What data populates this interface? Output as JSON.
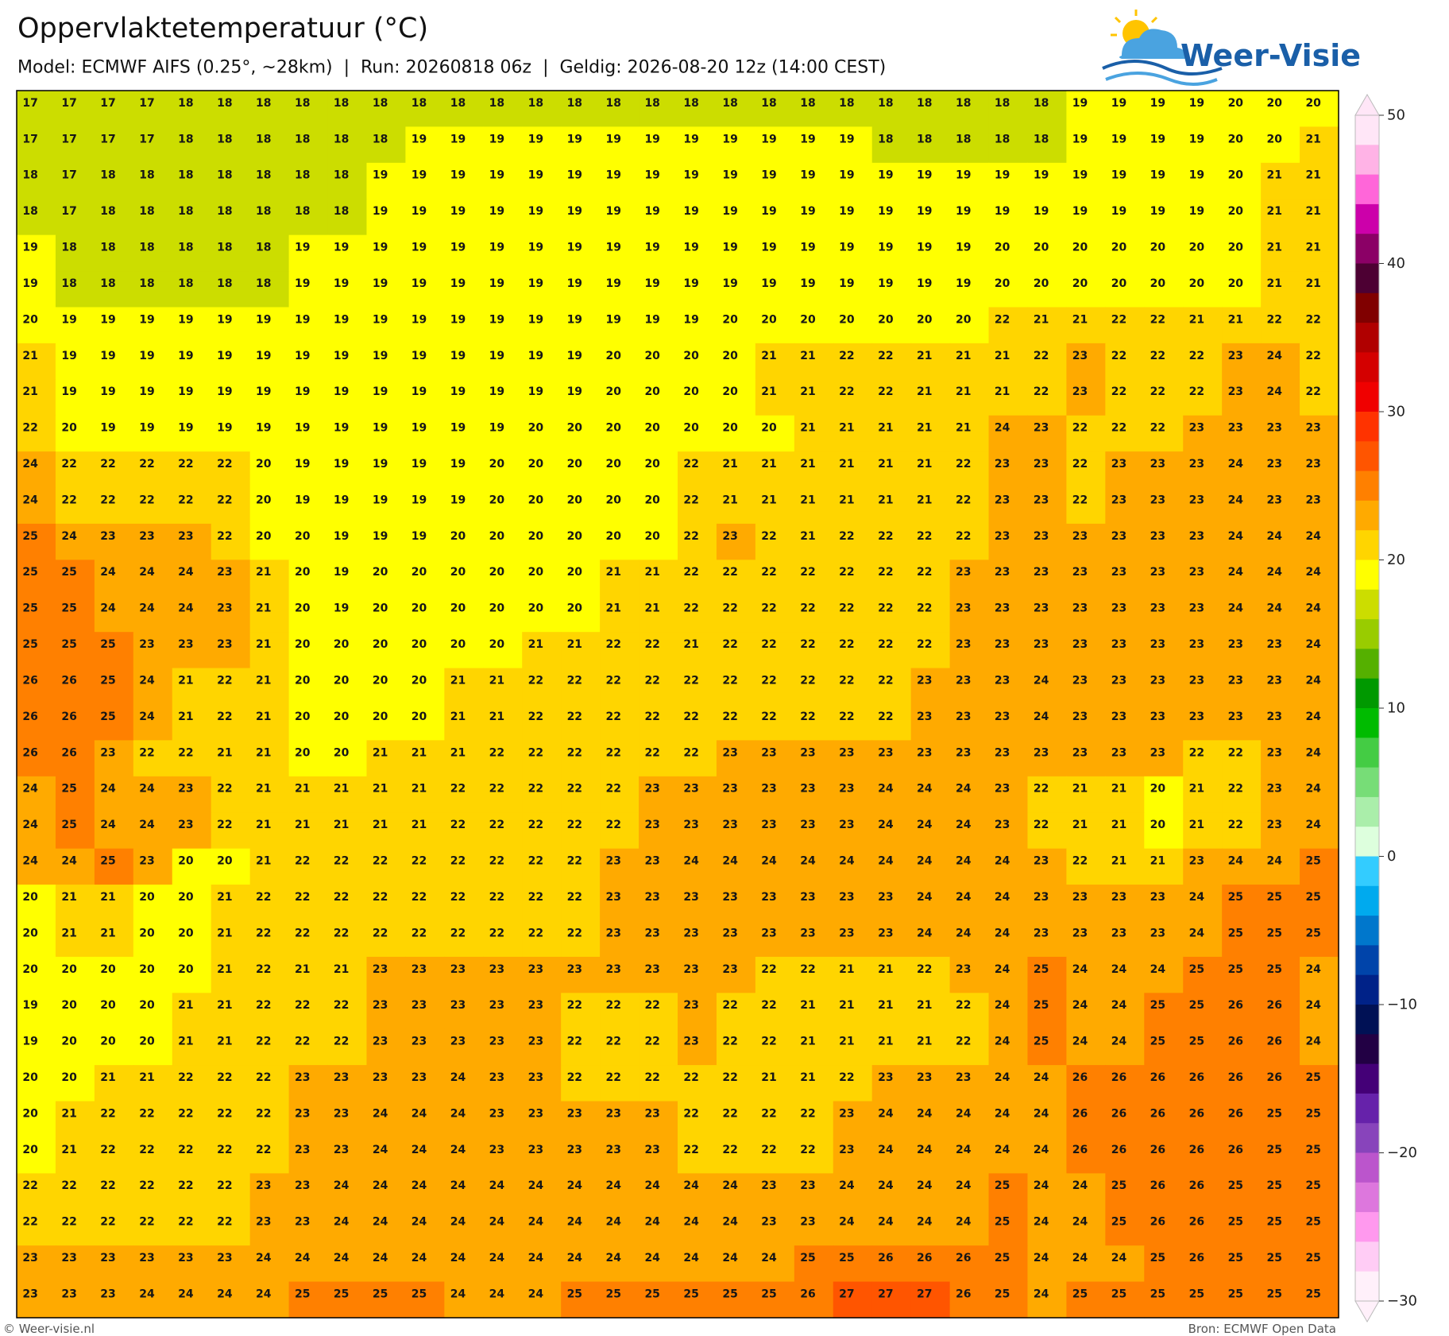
{
  "chart_data": {
    "type": "heatmap",
    "title": "Oppervlaktetemperatuur (°C)",
    "subtitle": "Model: ECMWF AIFS (0.25°, ~28km)  |  Run: 20260818 06z  |  Geldig: 2026-08-20 12z (14:00 CEST)",
    "values": [
      [
        17,
        17,
        17,
        17,
        18,
        18,
        18,
        18,
        18,
        18,
        18,
        18,
        18,
        18,
        18,
        18,
        18,
        18,
        18,
        18,
        18,
        18,
        18,
        18,
        18,
        18,
        18,
        19,
        19,
        19,
        19,
        20,
        20,
        20
      ],
      [
        17,
        17,
        17,
        17,
        18,
        18,
        18,
        18,
        18,
        18,
        19,
        19,
        19,
        19,
        19,
        19,
        19,
        19,
        19,
        19,
        19,
        19,
        18,
        18,
        18,
        18,
        18,
        19,
        19,
        19,
        19,
        20,
        20,
        21
      ],
      [
        18,
        17,
        18,
        18,
        18,
        18,
        18,
        18,
        18,
        19,
        19,
        19,
        19,
        19,
        19,
        19,
        19,
        19,
        19,
        19,
        19,
        19,
        19,
        19,
        19,
        19,
        19,
        19,
        19,
        19,
        19,
        20,
        21,
        21
      ],
      [
        18,
        17,
        18,
        18,
        18,
        18,
        18,
        18,
        18,
        19,
        19,
        19,
        19,
        19,
        19,
        19,
        19,
        19,
        19,
        19,
        19,
        19,
        19,
        19,
        19,
        19,
        19,
        19,
        19,
        19,
        19,
        20,
        21,
        21
      ],
      [
        19,
        18,
        18,
        18,
        18,
        18,
        18,
        19,
        19,
        19,
        19,
        19,
        19,
        19,
        19,
        19,
        19,
        19,
        19,
        19,
        19,
        19,
        19,
        19,
        19,
        20,
        20,
        20,
        20,
        20,
        20,
        20,
        21,
        21
      ],
      [
        19,
        18,
        18,
        18,
        18,
        18,
        18,
        19,
        19,
        19,
        19,
        19,
        19,
        19,
        19,
        19,
        19,
        19,
        19,
        19,
        19,
        19,
        19,
        19,
        19,
        20,
        20,
        20,
        20,
        20,
        20,
        20,
        21,
        21
      ],
      [
        20,
        19,
        19,
        19,
        19,
        19,
        19,
        19,
        19,
        19,
        19,
        19,
        19,
        19,
        19,
        19,
        19,
        19,
        20,
        20,
        20,
        20,
        20,
        20,
        20,
        22,
        21,
        21,
        22,
        22,
        21,
        21,
        22,
        22
      ],
      [
        21,
        19,
        19,
        19,
        19,
        19,
        19,
        19,
        19,
        19,
        19,
        19,
        19,
        19,
        19,
        20,
        20,
        20,
        20,
        21,
        21,
        22,
        22,
        21,
        21,
        21,
        22,
        23,
        22,
        22,
        22,
        23,
        24,
        22
      ],
      [
        21,
        19,
        19,
        19,
        19,
        19,
        19,
        19,
        19,
        19,
        19,
        19,
        19,
        19,
        19,
        20,
        20,
        20,
        20,
        21,
        21,
        22,
        22,
        21,
        21,
        21,
        22,
        23,
        22,
        22,
        22,
        23,
        24,
        22
      ],
      [
        22,
        20,
        19,
        19,
        19,
        19,
        19,
        19,
        19,
        19,
        19,
        19,
        19,
        20,
        20,
        20,
        20,
        20,
        20,
        20,
        21,
        21,
        21,
        21,
        21,
        24,
        23,
        22,
        22,
        22,
        23,
        23,
        23,
        23
      ],
      [
        24,
        22,
        22,
        22,
        22,
        22,
        20,
        19,
        19,
        19,
        19,
        19,
        20,
        20,
        20,
        20,
        20,
        22,
        21,
        21,
        21,
        21,
        21,
        21,
        22,
        23,
        23,
        22,
        23,
        23,
        23,
        24,
        23,
        23
      ],
      [
        24,
        22,
        22,
        22,
        22,
        22,
        20,
        19,
        19,
        19,
        19,
        19,
        20,
        20,
        20,
        20,
        20,
        22,
        21,
        21,
        21,
        21,
        21,
        21,
        22,
        23,
        23,
        22,
        23,
        23,
        23,
        24,
        23,
        23
      ],
      [
        25,
        24,
        23,
        23,
        23,
        22,
        20,
        20,
        19,
        19,
        19,
        20,
        20,
        20,
        20,
        20,
        20,
        22,
        23,
        22,
        21,
        22,
        22,
        22,
        22,
        23,
        23,
        23,
        23,
        23,
        23,
        24,
        24,
        24
      ],
      [
        25,
        25,
        24,
        24,
        24,
        23,
        21,
        20,
        19,
        20,
        20,
        20,
        20,
        20,
        20,
        21,
        21,
        22,
        22,
        22,
        22,
        22,
        22,
        22,
        23,
        23,
        23,
        23,
        23,
        23,
        23,
        24,
        24,
        24
      ],
      [
        25,
        25,
        24,
        24,
        24,
        23,
        21,
        20,
        19,
        20,
        20,
        20,
        20,
        20,
        20,
        21,
        21,
        22,
        22,
        22,
        22,
        22,
        22,
        22,
        23,
        23,
        23,
        23,
        23,
        23,
        23,
        24,
        24,
        24
      ],
      [
        25,
        25,
        25,
        23,
        23,
        23,
        21,
        20,
        20,
        20,
        20,
        20,
        20,
        21,
        21,
        22,
        22,
        21,
        22,
        22,
        22,
        22,
        22,
        22,
        23,
        23,
        23,
        23,
        23,
        23,
        23,
        23,
        23,
        24
      ],
      [
        26,
        26,
        25,
        24,
        21,
        22,
        21,
        20,
        20,
        20,
        20,
        21,
        21,
        22,
        22,
        22,
        22,
        22,
        22,
        22,
        22,
        22,
        22,
        23,
        23,
        23,
        24,
        23,
        23,
        23,
        23,
        23,
        23,
        24
      ],
      [
        26,
        26,
        25,
        24,
        21,
        22,
        21,
        20,
        20,
        20,
        20,
        21,
        21,
        22,
        22,
        22,
        22,
        22,
        22,
        22,
        22,
        22,
        22,
        23,
        23,
        23,
        24,
        23,
        23,
        23,
        23,
        23,
        23,
        24
      ],
      [
        26,
        26,
        23,
        22,
        22,
        21,
        21,
        20,
        20,
        21,
        21,
        21,
        22,
        22,
        22,
        22,
        22,
        22,
        23,
        23,
        23,
        23,
        23,
        23,
        23,
        23,
        23,
        23,
        23,
        23,
        22,
        22,
        23,
        24
      ],
      [
        24,
        25,
        24,
        24,
        23,
        22,
        21,
        21,
        21,
        21,
        21,
        22,
        22,
        22,
        22,
        22,
        23,
        23,
        23,
        23,
        23,
        23,
        24,
        24,
        24,
        23,
        22,
        21,
        21,
        20,
        21,
        22,
        23,
        24
      ],
      [
        24,
        25,
        24,
        24,
        23,
        22,
        21,
        21,
        21,
        21,
        21,
        22,
        22,
        22,
        22,
        22,
        23,
        23,
        23,
        23,
        23,
        23,
        24,
        24,
        24,
        23,
        22,
        21,
        21,
        20,
        21,
        22,
        23,
        24
      ],
      [
        24,
        24,
        25,
        23,
        20,
        20,
        21,
        22,
        22,
        22,
        22,
        22,
        22,
        22,
        22,
        23,
        23,
        24,
        24,
        24,
        24,
        24,
        24,
        24,
        24,
        24,
        23,
        22,
        21,
        21,
        23,
        24,
        24,
        25
      ],
      [
        20,
        21,
        21,
        20,
        20,
        21,
        22,
        22,
        22,
        22,
        22,
        22,
        22,
        22,
        22,
        23,
        23,
        23,
        23,
        23,
        23,
        23,
        23,
        24,
        24,
        24,
        23,
        23,
        23,
        23,
        24,
        25,
        25,
        25
      ],
      [
        20,
        21,
        21,
        20,
        20,
        21,
        22,
        22,
        22,
        22,
        22,
        22,
        22,
        22,
        22,
        23,
        23,
        23,
        23,
        23,
        23,
        23,
        23,
        24,
        24,
        24,
        23,
        23,
        23,
        23,
        24,
        25,
        25,
        25
      ],
      [
        20,
        20,
        20,
        20,
        20,
        21,
        22,
        21,
        21,
        23,
        23,
        23,
        23,
        23,
        23,
        23,
        23,
        23,
        23,
        22,
        22,
        21,
        21,
        22,
        23,
        24,
        25,
        24,
        24,
        24,
        25,
        25,
        25,
        24
      ],
      [
        19,
        20,
        20,
        20,
        21,
        21,
        22,
        22,
        22,
        23,
        23,
        23,
        23,
        23,
        22,
        22,
        22,
        23,
        22,
        22,
        21,
        21,
        21,
        21,
        22,
        24,
        25,
        24,
        24,
        25,
        25,
        26,
        26,
        24
      ],
      [
        19,
        20,
        20,
        20,
        21,
        21,
        22,
        22,
        22,
        23,
        23,
        23,
        23,
        23,
        22,
        22,
        22,
        23,
        22,
        22,
        21,
        21,
        21,
        21,
        22,
        24,
        25,
        24,
        24,
        25,
        25,
        26,
        26,
        24
      ],
      [
        20,
        20,
        21,
        21,
        22,
        22,
        22,
        23,
        23,
        23,
        23,
        24,
        23,
        23,
        22,
        22,
        22,
        22,
        22,
        21,
        21,
        22,
        23,
        23,
        23,
        24,
        24,
        26,
        26,
        26,
        26,
        26,
        26,
        25
      ],
      [
        20,
        21,
        22,
        22,
        22,
        22,
        22,
        23,
        23,
        24,
        24,
        24,
        23,
        23,
        23,
        23,
        23,
        22,
        22,
        22,
        22,
        23,
        24,
        24,
        24,
        24,
        24,
        26,
        26,
        26,
        26,
        26,
        25,
        25
      ],
      [
        20,
        21,
        22,
        22,
        22,
        22,
        22,
        23,
        23,
        24,
        24,
        24,
        23,
        23,
        23,
        23,
        23,
        22,
        22,
        22,
        22,
        23,
        24,
        24,
        24,
        24,
        24,
        26,
        26,
        26,
        26,
        26,
        25,
        25
      ],
      [
        22,
        22,
        22,
        22,
        22,
        22,
        23,
        23,
        24,
        24,
        24,
        24,
        24,
        24,
        24,
        24,
        24,
        24,
        24,
        23,
        23,
        24,
        24,
        24,
        24,
        25,
        24,
        24,
        25,
        26,
        26,
        25,
        25,
        25
      ],
      [
        22,
        22,
        22,
        22,
        22,
        22,
        23,
        23,
        24,
        24,
        24,
        24,
        24,
        24,
        24,
        24,
        24,
        24,
        24,
        23,
        23,
        24,
        24,
        24,
        24,
        25,
        24,
        24,
        25,
        26,
        26,
        25,
        25,
        25
      ],
      [
        23,
        23,
        23,
        23,
        23,
        23,
        24,
        24,
        24,
        24,
        24,
        24,
        24,
        24,
        24,
        24,
        24,
        24,
        24,
        24,
        25,
        25,
        26,
        26,
        26,
        25,
        24,
        24,
        24,
        25,
        26,
        25,
        25,
        25
      ],
      [
        23,
        23,
        23,
        24,
        24,
        24,
        24,
        25,
        25,
        25,
        25,
        24,
        24,
        24,
        25,
        25,
        25,
        25,
        25,
        25,
        26,
        27,
        27,
        27,
        26,
        25,
        24,
        25,
        25,
        25,
        25,
        25,
        25,
        25
      ]
    ],
    "colorbar": {
      "lim": [
        -30,
        50
      ],
      "ticks": [
        50,
        40,
        30,
        20,
        10,
        0,
        {
          "value": -10,
          "label": "−10"
        },
        {
          "value": -20,
          "label": "−20"
        },
        {
          "value": -30,
          "label": "−30"
        }
      ],
      "colors": [
        "#ffe6f7",
        "#ffb3e6",
        "#ff66d9",
        "#cc00aa",
        "#8b0066",
        "#4d0033",
        "#800000",
        "#b00000",
        "#d40000",
        "#f00000",
        "#ff3300",
        "#ff5500",
        "#ff8000",
        "#ffaa00",
        "#ffd500",
        "#ffff00",
        "#ccdd00",
        "#99cc00",
        "#55b000",
        "#009900",
        "#00bb00",
        "#44cc44",
        "#77dd77",
        "#aaeeaa",
        "#ddffdd",
        "#33ccff",
        "#00aaee",
        "#0077cc",
        "#0044aa",
        "#002288",
        "#001155",
        "#220044",
        "#440077",
        "#6622aa",
        "#8844bb",
        "#bb55cc",
        "#dd77dd",
        "#ff99ee",
        "#ffccf5",
        "#fff0fa"
      ]
    }
  },
  "logo": {
    "text": "Weer-Visie"
  },
  "footer": {
    "credit": "© Weer-visie.nl",
    "source": "Bron: ECMWF Open Data"
  }
}
